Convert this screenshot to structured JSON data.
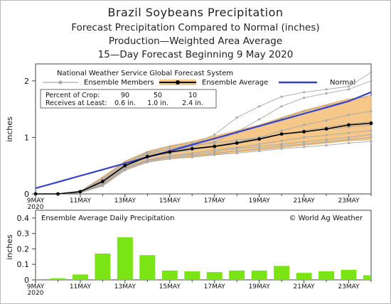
{
  "titles": {
    "line1": "Brazil Soybeans Precipitation",
    "line2": "Forecast Precipitation Compared to Normal (inches)",
    "line3": "Production—Weighted Area Average",
    "line4": "15—Day Forecast Beginning 9 May 2020"
  },
  "chart_data": [
    {
      "type": "line",
      "source_label": "National Weather Service Global Forecast System",
      "ylabel": "inches",
      "ylim": [
        0,
        2.3
      ],
      "yticks": [
        0,
        1,
        2
      ],
      "x": [
        "9MAY",
        "10MAY",
        "11MAY",
        "12MAY",
        "13MAY",
        "14MAY",
        "15MAY",
        "16MAY",
        "17MAY",
        "18MAY",
        "19MAY",
        "20MAY",
        "21MAY",
        "22MAY",
        "23MAY",
        "24MAY"
      ],
      "xtick_labels": [
        "9MAY",
        "11MAY",
        "13MAY",
        "15MAY",
        "17MAY",
        "19MAY",
        "21MAY",
        "23MAY"
      ],
      "xtick_year": "2020",
      "legend": {
        "members": "Ensemble Members",
        "average": "Ensemble Average",
        "normal": "Normal"
      },
      "percent_table": {
        "row1_label": "Percent of Crop:",
        "row2_label": "Receives at Least:",
        "percents": [
          "90",
          "50",
          "10"
        ],
        "amounts": [
          "0.6 in.",
          "1.0 in.",
          "2.4 in."
        ]
      },
      "normal": [
        0.1,
        0.21,
        0.32,
        0.43,
        0.54,
        0.65,
        0.76,
        0.87,
        0.98,
        1.09,
        1.2,
        1.31,
        1.42,
        1.53,
        1.64,
        1.8
      ],
      "ensemble_average": [
        0.0,
        0.0,
        0.04,
        0.22,
        0.5,
        0.66,
        0.74,
        0.8,
        0.84,
        0.9,
        0.97,
        1.06,
        1.1,
        1.15,
        1.22,
        1.25
      ],
      "band_upper": [
        0.0,
        0.0,
        0.05,
        0.3,
        0.58,
        0.75,
        0.85,
        0.93,
        1.02,
        1.12,
        1.22,
        1.35,
        1.48,
        1.58,
        1.68,
        1.72
      ],
      "band_lower": [
        0.0,
        0.0,
        0.02,
        0.15,
        0.42,
        0.56,
        0.62,
        0.66,
        0.7,
        0.74,
        0.78,
        0.82,
        0.86,
        0.9,
        0.94,
        0.96
      ],
      "members": [
        [
          0,
          0,
          0.04,
          0.24,
          0.52,
          0.7,
          0.8,
          0.88,
          1.05,
          1.35,
          1.55,
          1.72,
          1.8,
          1.85,
          1.9,
          2.15
        ],
        [
          0,
          0,
          0.04,
          0.22,
          0.5,
          0.68,
          0.76,
          0.84,
          0.92,
          1.1,
          1.32,
          1.55,
          1.7,
          1.78,
          1.85,
          2.0
        ],
        [
          0,
          0,
          0.05,
          0.28,
          0.56,
          0.74,
          0.84,
          0.9,
          0.98,
          1.08,
          1.2,
          1.34,
          1.46,
          1.56,
          1.65,
          1.75
        ],
        [
          0,
          0,
          0.03,
          0.2,
          0.48,
          0.64,
          0.72,
          0.78,
          0.84,
          0.92,
          1.0,
          1.12,
          1.22,
          1.3,
          1.4,
          1.46
        ],
        [
          0,
          0,
          0.04,
          0.22,
          0.5,
          0.66,
          0.74,
          0.8,
          0.86,
          0.92,
          0.98,
          1.05,
          1.12,
          1.18,
          1.24,
          1.28
        ],
        [
          0,
          0,
          0.04,
          0.18,
          0.46,
          0.6,
          0.68,
          0.72,
          0.78,
          0.82,
          0.88,
          0.94,
          1.0,
          1.04,
          1.08,
          1.12
        ],
        [
          0,
          0,
          0.02,
          0.16,
          0.44,
          0.58,
          0.64,
          0.68,
          0.72,
          0.76,
          0.8,
          0.85,
          0.88,
          0.92,
          0.96,
          1.0
        ],
        [
          0,
          0,
          0.02,
          0.14,
          0.42,
          0.56,
          0.62,
          0.65,
          0.69,
          0.72,
          0.76,
          0.8,
          0.83,
          0.86,
          0.9,
          0.93
        ],
        [
          0,
          0,
          0.03,
          0.17,
          0.45,
          0.59,
          0.66,
          0.7,
          0.75,
          0.8,
          0.84,
          0.88,
          0.92,
          0.96,
          1.0,
          1.05
        ],
        [
          0,
          0,
          0.05,
          0.26,
          0.54,
          0.72,
          0.8,
          0.86,
          0.9,
          0.95,
          1.0,
          1.06,
          1.1,
          1.14,
          1.18,
          1.22
        ]
      ]
    },
    {
      "type": "bar",
      "title": "Ensemble Average Daily Precipitation",
      "credit": "© World Ag Weather",
      "ylabel": "inches",
      "ylim": [
        0,
        0.45
      ],
      "yticks": [
        0,
        0.1,
        0.2,
        0.3,
        0.4
      ],
      "ytick_labels": [
        "0",
        "0.1",
        "0.2",
        "0.3",
        "0.4"
      ],
      "categories": [
        "9MAY",
        "10MAY",
        "11MAY",
        "12MAY",
        "13MAY",
        "14MAY",
        "15MAY",
        "16MAY",
        "17MAY",
        "18MAY",
        "19MAY",
        "20MAY",
        "21MAY",
        "22MAY",
        "23MAY",
        "24MAY"
      ],
      "xtick_labels": [
        "9MAY",
        "11MAY",
        "13MAY",
        "15MAY",
        "17MAY",
        "19MAY",
        "21MAY",
        "23MAY"
      ],
      "xtick_year": "2020",
      "values": [
        0.005,
        0.01,
        0.035,
        0.17,
        0.275,
        0.16,
        0.06,
        0.055,
        0.05,
        0.06,
        0.06,
        0.09,
        0.045,
        0.055,
        0.065,
        0.03
      ],
      "bar_color": "#7be414"
    }
  ],
  "colors": {
    "normal": "#3340c8",
    "band_fill": "#f5c88a",
    "band_edge": "#e8a050",
    "average": "#000000",
    "members": "#a8a8a8"
  }
}
